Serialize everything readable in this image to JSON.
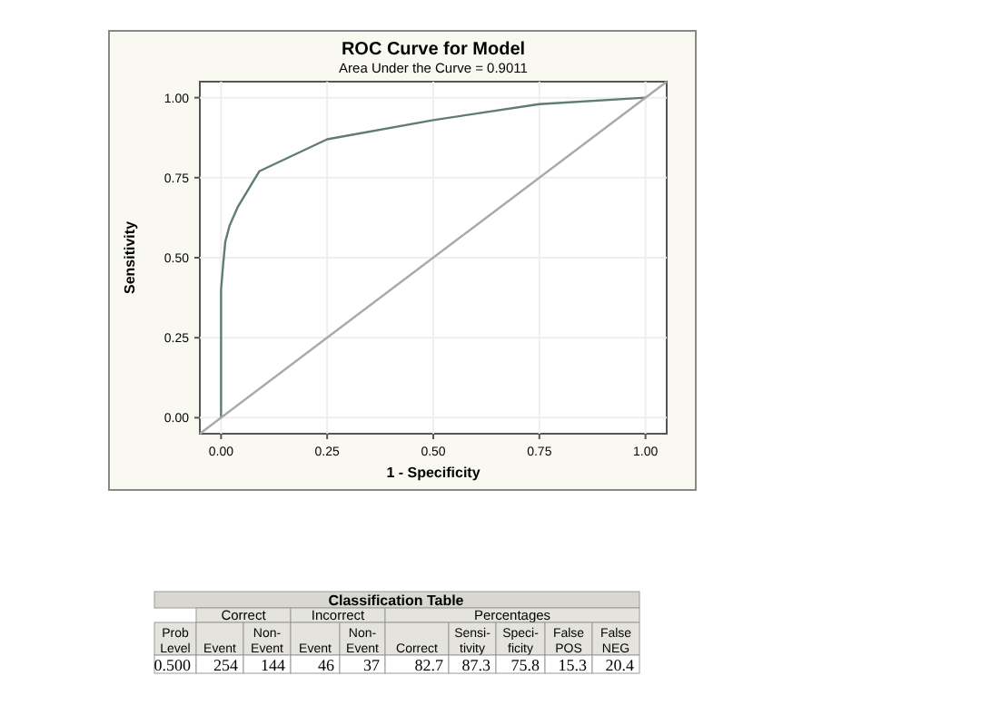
{
  "chart_data": [
    {
      "type": "line",
      "title": "ROC Curve for Model",
      "subtitle": "Area Under the Curve = 0.9011",
      "xlabel": "1 - Specificity",
      "ylabel": "Sensitivity",
      "xlim": [
        -0.05,
        1.05
      ],
      "ylim": [
        -0.05,
        1.05
      ],
      "xticks": [
        {
          "value": 0,
          "label": "0.00"
        },
        {
          "value": 0.25,
          "label": "0.25"
        },
        {
          "value": 0.5,
          "label": "0.50"
        },
        {
          "value": 0.75,
          "label": "0.75"
        },
        {
          "value": 1,
          "label": "1.00"
        }
      ],
      "yticks": [
        {
          "value": 0,
          "label": "0.00"
        },
        {
          "value": 0.25,
          "label": "0.25"
        },
        {
          "value": 0.5,
          "label": "0.50"
        },
        {
          "value": 0.75,
          "label": "0.75"
        },
        {
          "value": 1,
          "label": "1.00"
        }
      ],
      "grid": true,
      "marker": "none",
      "line_style": "solid",
      "series": [
        {
          "color": "#5f7d70",
          "x": [
            0,
            0,
            0.005,
            0.01,
            0.02,
            0.04,
            0.09,
            0.25,
            0.5,
            0.75,
            1
          ],
          "values": [
            0,
            0.4,
            0.48,
            0.55,
            0.6,
            0.66,
            0.77,
            0.87,
            0.93,
            0.98,
            1
          ]
        },
        {
          "color": "#a8a8a8",
          "x": [
            -0.05,
            1.05
          ],
          "values": [
            -0.05,
            1.05
          ]
        }
      ]
    },
    {
      "type": "other",
      "title": "Classification Table",
      "annotations": [
        "Correct",
        "Incorrect",
        "Percentages",
        "Prob\nLevel",
        "\nEvent",
        "Non-\nEvent",
        "\nEvent",
        "Non-\nEvent",
        "\nCorrect",
        "Sensi-\ntivity",
        "Speci-\nficity",
        "False\nPOS",
        "False\nNEG",
        "0.500",
        "254",
        "144",
        "46",
        "37",
        "82.7",
        "87.3",
        "75.8",
        "15.3",
        "20.4"
      ]
    }
  ]
}
